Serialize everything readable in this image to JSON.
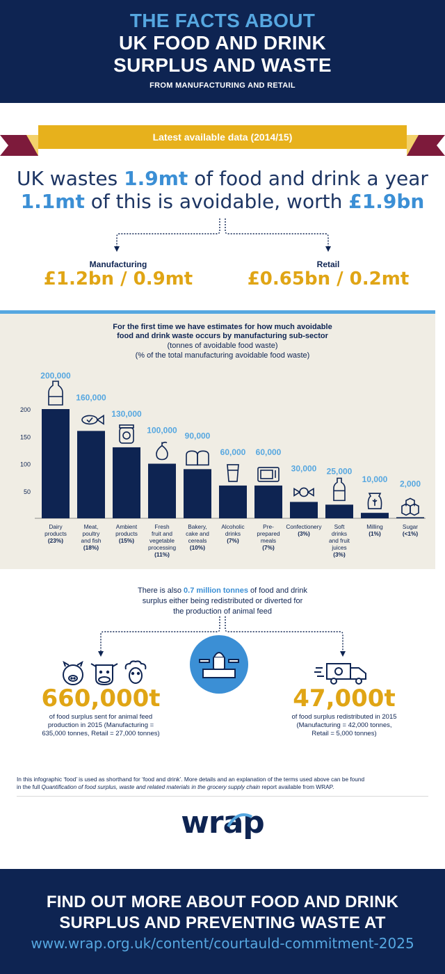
{
  "header": {
    "line1": "THE FACTS ABOUT",
    "line2": "UK FOOD AND DRINK",
    "line3": "SURPLUS AND WASTE",
    "sub": "FROM MANUFACTURING AND RETAIL"
  },
  "banner": {
    "label": "Latest available data (2014/15)"
  },
  "headline": {
    "l1_pre": "UK wastes ",
    "l1_bold": "1.9mt",
    "l1_post": " of food and drink a year",
    "l2_bold1": "1.1mt",
    "l2_mid": " of this is avoidable, worth ",
    "l2_bold2": "£1.9bn"
  },
  "split": {
    "manufacturing_label": "Manufacturing",
    "manufacturing_value": "£1.2bn / 0.9mt",
    "retail_label": "Retail",
    "retail_value": "£0.65bn / 0.2mt"
  },
  "chart_intro": {
    "l1": "For the first time we have estimates for how much avoidable",
    "l2": "food and drink waste occurs by manufacturing sub-sector",
    "l3": "(tonnes of avoidable food waste)",
    "l4": "(% of the total manufacturing avoidable food waste)"
  },
  "chart_data": {
    "type": "bar",
    "categories": [
      "Dairy products (23%)",
      "Meat, poultry and fish (18%)",
      "Ambient products (15%)",
      "Fresh fruit and vegetable processing (11%)",
      "Bakery, cake and cereals (10%)",
      "Alcoholic drinks (7%)",
      "Pre-prepared meals (7%)",
      "Confectionery (3%)",
      "Soft drinks and fruit juices (3%)",
      "Milling (1%)",
      "Sugar (<1%)"
    ],
    "category_lines": [
      [
        "Dairy",
        "products",
        "(23%)"
      ],
      [
        "Meat,",
        "poultry",
        "and fish",
        "(18%)"
      ],
      [
        "Ambient",
        "products",
        "(15%)"
      ],
      [
        "Fresh",
        "fruit and",
        "vegetable",
        "processing",
        "(11%)"
      ],
      [
        "Bakery,",
        "cake and",
        "cereals",
        "(10%)"
      ],
      [
        "Alcoholic",
        "drinks",
        "(7%)"
      ],
      [
        "Pre-",
        "prepared",
        "meals",
        "(7%)"
      ],
      [
        "Confectionery",
        "(3%)"
      ],
      [
        "Soft",
        "drinks",
        "and fruit",
        "juices",
        "(3%)"
      ],
      [
        "Milling",
        "(1%)"
      ],
      [
        "Sugar",
        "(<1%)"
      ]
    ],
    "values": [
      200,
      160,
      130,
      100,
      90,
      60,
      60,
      30,
      25,
      10,
      2
    ],
    "data_labels": [
      "200,000",
      "160,000",
      "130,000",
      "100,000",
      "90,000",
      "60,000",
      "60,000",
      "30,000",
      "25,000",
      "10,000",
      "2,000"
    ],
    "icons": [
      "milk-bottle-icon",
      "fish-icon",
      "jar-icon",
      "pear-icon",
      "bread-icon",
      "glass-icon",
      "microwave-icon",
      "sweet-icon",
      "bottle-icon",
      "flour-sack-icon",
      "sugar-cubes-icon"
    ],
    "ylim": [
      0,
      200
    ],
    "yticks": [
      50,
      100,
      150,
      200
    ],
    "bar_color": "#0e2452",
    "label_color": "#56a7e0"
  },
  "mid": {
    "pre": "There is also ",
    "bold": "0.7 million tonnes",
    "post1": " of food and drink",
    "line2": "surplus either being redistributed or diverted for",
    "line3": "the production of animal feed"
  },
  "animal_feed": {
    "value": "660,000t",
    "d1": "of food surplus sent for animal feed",
    "d2": "production in 2015 (Manufacturing =",
    "d3": "635,000 tonnes, Retail = 27,000 tonnes)"
  },
  "redistributed": {
    "value": "47,000t",
    "d1": "of food surplus redistributed in 2015",
    "d2": "(Manufacturing = 42,000 tonnes,",
    "d3": "Retail = 5,000 tonnes)"
  },
  "footnote": {
    "l1": "In this infographic ‘food’ is used as shorthand for ‘food and drink’. More details and an explanation of the terms used above can be found",
    "l2_pre": "in the full ",
    "l2_italic": "Quantification of food surplus, waste and related materials in the grocery supply chain",
    "l2_post": " report available from WRAP."
  },
  "logo": {
    "text": "wrap"
  },
  "cta": {
    "line1": "FIND OUT MORE ABOUT FOOD AND DRINK",
    "line2": "SURPLUS AND PREVENTING WASTE AT",
    "url": "www.wrap.org.uk/content/courtauld-commitment-2025"
  },
  "colors": {
    "navy": "#0e2452",
    "blue": "#56a7e0",
    "gold": "#e0a515",
    "maroon": "#7d1a3b"
  }
}
